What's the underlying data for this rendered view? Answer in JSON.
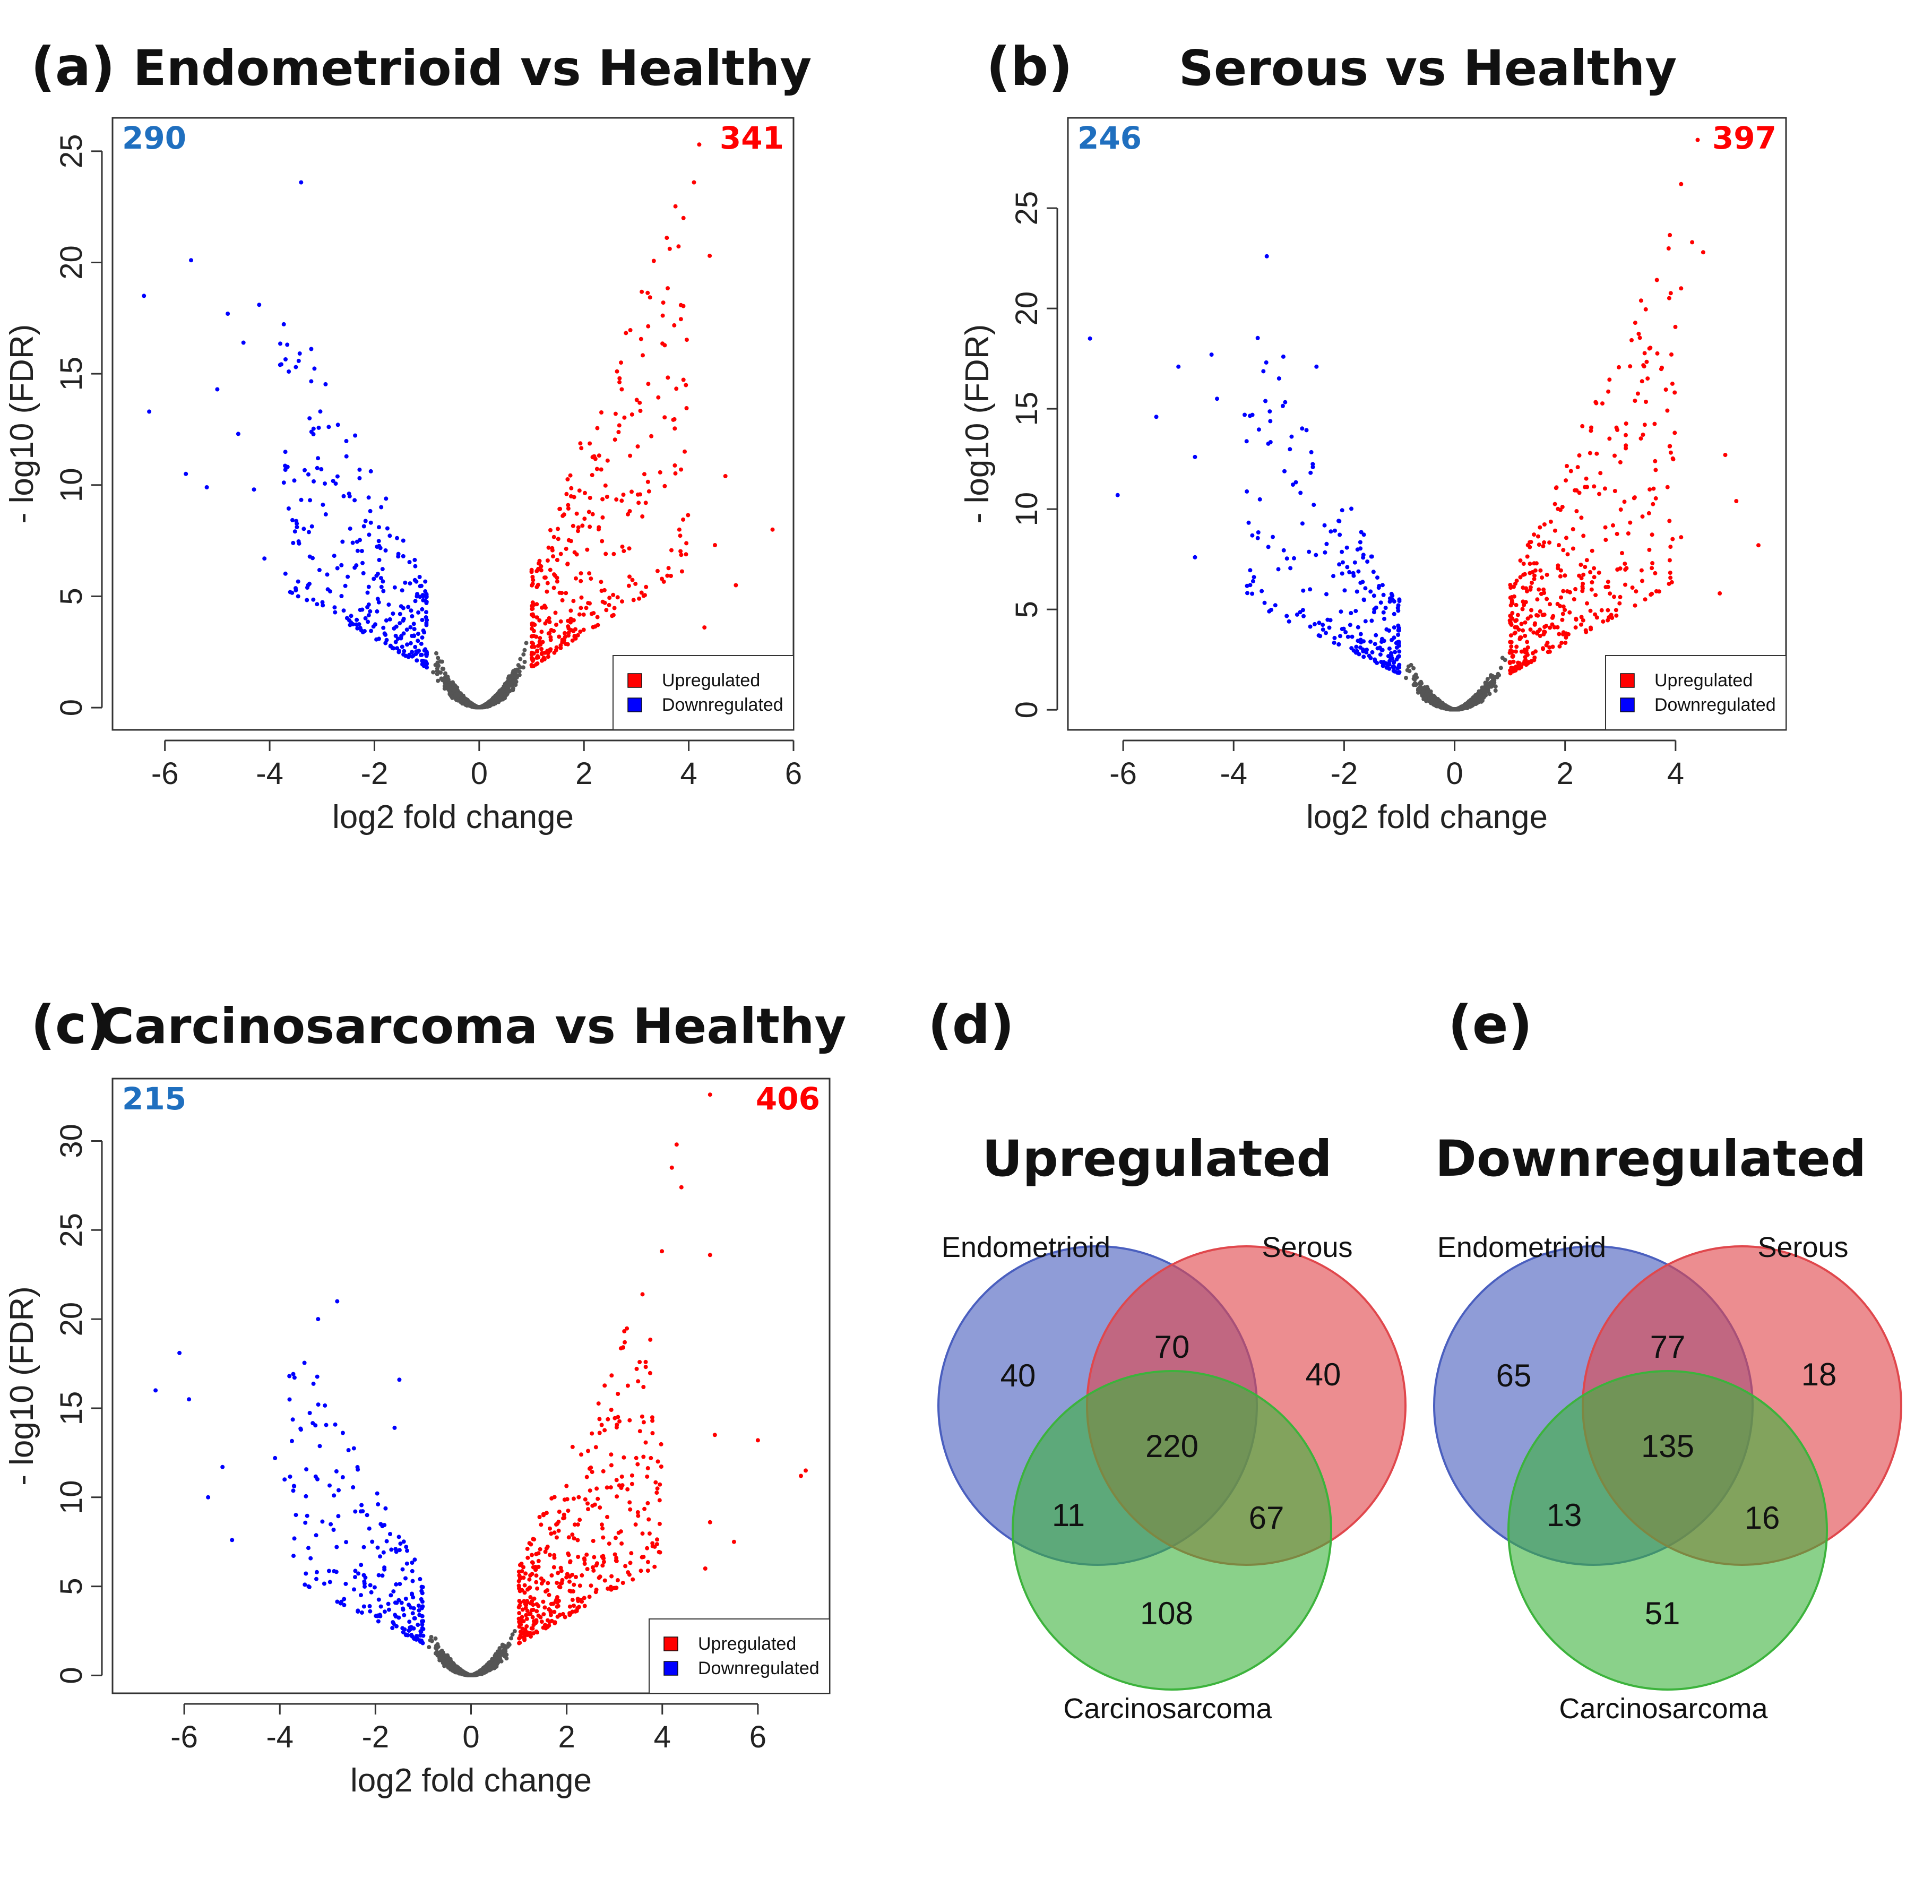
{
  "chart_data": [
    {
      "id": "a",
      "type": "scatter",
      "panel_label": "(a)",
      "title": "Endometrioid vs Healthy",
      "xlabel": "log2 fold change",
      "ylabel": "- log10 (FDR)",
      "xlim": [
        -7,
        6
      ],
      "ylim": [
        -1,
        26.5
      ],
      "xticks": [
        -6,
        -4,
        -2,
        0,
        2,
        4,
        6
      ],
      "yticks": [
        0,
        5,
        10,
        15,
        20,
        25
      ],
      "down_count": "290",
      "up_count": "341",
      "legend": {
        "position": "bottom-right",
        "entries": [
          "Upregulated",
          "Downregulated"
        ]
      },
      "colors": {
        "up": "#ff0000",
        "down": "#0000ff",
        "ns": "#555555"
      },
      "outliers_down": [
        [
          -6.4,
          18.5
        ],
        [
          -6.3,
          13.3
        ],
        [
          -5.6,
          10.5
        ],
        [
          -5.5,
          20.1
        ],
        [
          -5.2,
          9.9
        ],
        [
          -5.0,
          14.3
        ],
        [
          -4.8,
          17.7
        ],
        [
          -4.6,
          12.3
        ],
        [
          -4.5,
          16.4
        ],
        [
          -4.3,
          9.8
        ],
        [
          -4.2,
          18.1
        ],
        [
          -4.1,
          6.7
        ],
        [
          -3.4,
          23.6
        ],
        [
          -3.8,
          15.4
        ],
        [
          -3.5,
          15.3
        ]
      ],
      "outliers_up": [
        [
          4.2,
          25.3
        ],
        [
          4.1,
          23.6
        ],
        [
          3.9,
          22.0
        ],
        [
          4.4,
          20.3
        ],
        [
          4.7,
          10.4
        ],
        [
          4.9,
          5.5
        ],
        [
          5.6,
          8.0
        ],
        [
          4.5,
          7.3
        ],
        [
          4.3,
          3.6
        ]
      ]
    },
    {
      "id": "b",
      "type": "scatter",
      "panel_label": "(b)",
      "title": "Serous vs Healthy",
      "xlabel": "log2 fold change",
      "ylabel": "- log10 (FDR)",
      "xlim": [
        -7,
        6
      ],
      "ylim": [
        -1,
        29.5
      ],
      "xticks": [
        -6,
        -4,
        -2,
        0,
        2,
        4
      ],
      "yticks": [
        0,
        5,
        10,
        15,
        20,
        25
      ],
      "down_count": "246",
      "up_count": "397",
      "legend": {
        "position": "bottom-right",
        "entries": [
          "Upregulated",
          "Downregulated"
        ]
      },
      "colors": {
        "up": "#ff0000",
        "down": "#0000ff",
        "ns": "#555555"
      },
      "outliers_down": [
        [
          -6.6,
          18.5
        ],
        [
          -6.1,
          10.7
        ],
        [
          -5.4,
          14.6
        ],
        [
          -5.0,
          17.1
        ],
        [
          -4.7,
          12.6
        ],
        [
          -4.4,
          17.7
        ],
        [
          -4.3,
          15.5
        ],
        [
          -3.8,
          14.7
        ],
        [
          -3.4,
          22.6
        ],
        [
          -3.1,
          17.6
        ],
        [
          -2.5,
          17.1
        ],
        [
          -4.7,
          7.6
        ]
      ],
      "outliers_up": [
        [
          4.4,
          28.4
        ],
        [
          4.1,
          26.2
        ],
        [
          4.3,
          23.3
        ],
        [
          4.5,
          22.8
        ],
        [
          4.1,
          21.0
        ],
        [
          4.9,
          12.7
        ],
        [
          5.1,
          10.4
        ],
        [
          5.5,
          8.2
        ],
        [
          4.8,
          5.8
        ],
        [
          4.1,
          8.6
        ]
      ]
    },
    {
      "id": "c",
      "type": "scatter",
      "panel_label": "(c)",
      "title": "Carcinosarcoma vs Healthy",
      "xlabel": "log2 fold change",
      "ylabel": "- log10 (FDR)",
      "xlim": [
        -7.5,
        7.5
      ],
      "ylim": [
        -1,
        33.5
      ],
      "xticks": [
        -6,
        -4,
        -2,
        0,
        2,
        4,
        6
      ],
      "yticks": [
        0,
        5,
        10,
        15,
        20,
        25,
        30
      ],
      "down_count": "215",
      "up_count": "406",
      "legend": {
        "position": "bottom-right",
        "entries": [
          "Upregulated",
          "Downregulated"
        ]
      },
      "colors": {
        "up": "#ff0000",
        "down": "#0000ff",
        "ns": "#555555"
      },
      "outliers_down": [
        [
          -6.6,
          16.0
        ],
        [
          -6.1,
          18.1
        ],
        [
          -5.9,
          15.5
        ],
        [
          -5.5,
          10.0
        ],
        [
          -5.2,
          11.7
        ],
        [
          -5.0,
          7.6
        ],
        [
          -4.1,
          12.2
        ],
        [
          -3.9,
          11.0
        ],
        [
          -3.8,
          16.8
        ],
        [
          -3.2,
          20.0
        ],
        [
          -2.8,
          21.0
        ],
        [
          -1.5,
          16.6
        ],
        [
          -1.6,
          13.9
        ]
      ],
      "outliers_up": [
        [
          5.0,
          32.6
        ],
        [
          4.3,
          29.8
        ],
        [
          4.2,
          28.5
        ],
        [
          4.4,
          27.4
        ],
        [
          5.0,
          23.6
        ],
        [
          5.1,
          13.5
        ],
        [
          6.0,
          13.2
        ],
        [
          7.0,
          11.5
        ],
        [
          6.9,
          11.2
        ],
        [
          5.5,
          7.5
        ],
        [
          5.0,
          8.6
        ],
        [
          4.9,
          6.0
        ]
      ]
    },
    {
      "id": "d",
      "type": "venn",
      "panel_label": "(d)",
      "title": "Upregulated",
      "sets": [
        "Endometrioid",
        "Serous",
        "Carcinosarcoma"
      ],
      "regions": {
        "only_endometrioid": "40",
        "only_serous": "40",
        "only_carcinosarcoma": "108",
        "endometrioid_serous": "70",
        "endometrioid_carcinosarcoma": "11",
        "serous_carcinosarcoma": "67",
        "all_three": "220"
      },
      "colors": {
        "endometrioid": "#4a5fbf",
        "serous": "#e0474c",
        "carcinosarcoma": "#3cb33c"
      }
    },
    {
      "id": "e",
      "type": "venn",
      "panel_label": "(e)",
      "title": "Downregulated",
      "sets": [
        "Endometrioid",
        "Serous",
        "Carcinosarcoma"
      ],
      "regions": {
        "only_endometrioid": "65",
        "only_serous": "18",
        "only_carcinosarcoma": "51",
        "endometrioid_serous": "77",
        "endometrioid_carcinosarcoma": "13",
        "serous_carcinosarcoma": "16",
        "all_three": "135"
      },
      "colors": {
        "endometrioid": "#4a5fbf",
        "serous": "#e0474c",
        "carcinosarcoma": "#3cb33c"
      }
    }
  ]
}
